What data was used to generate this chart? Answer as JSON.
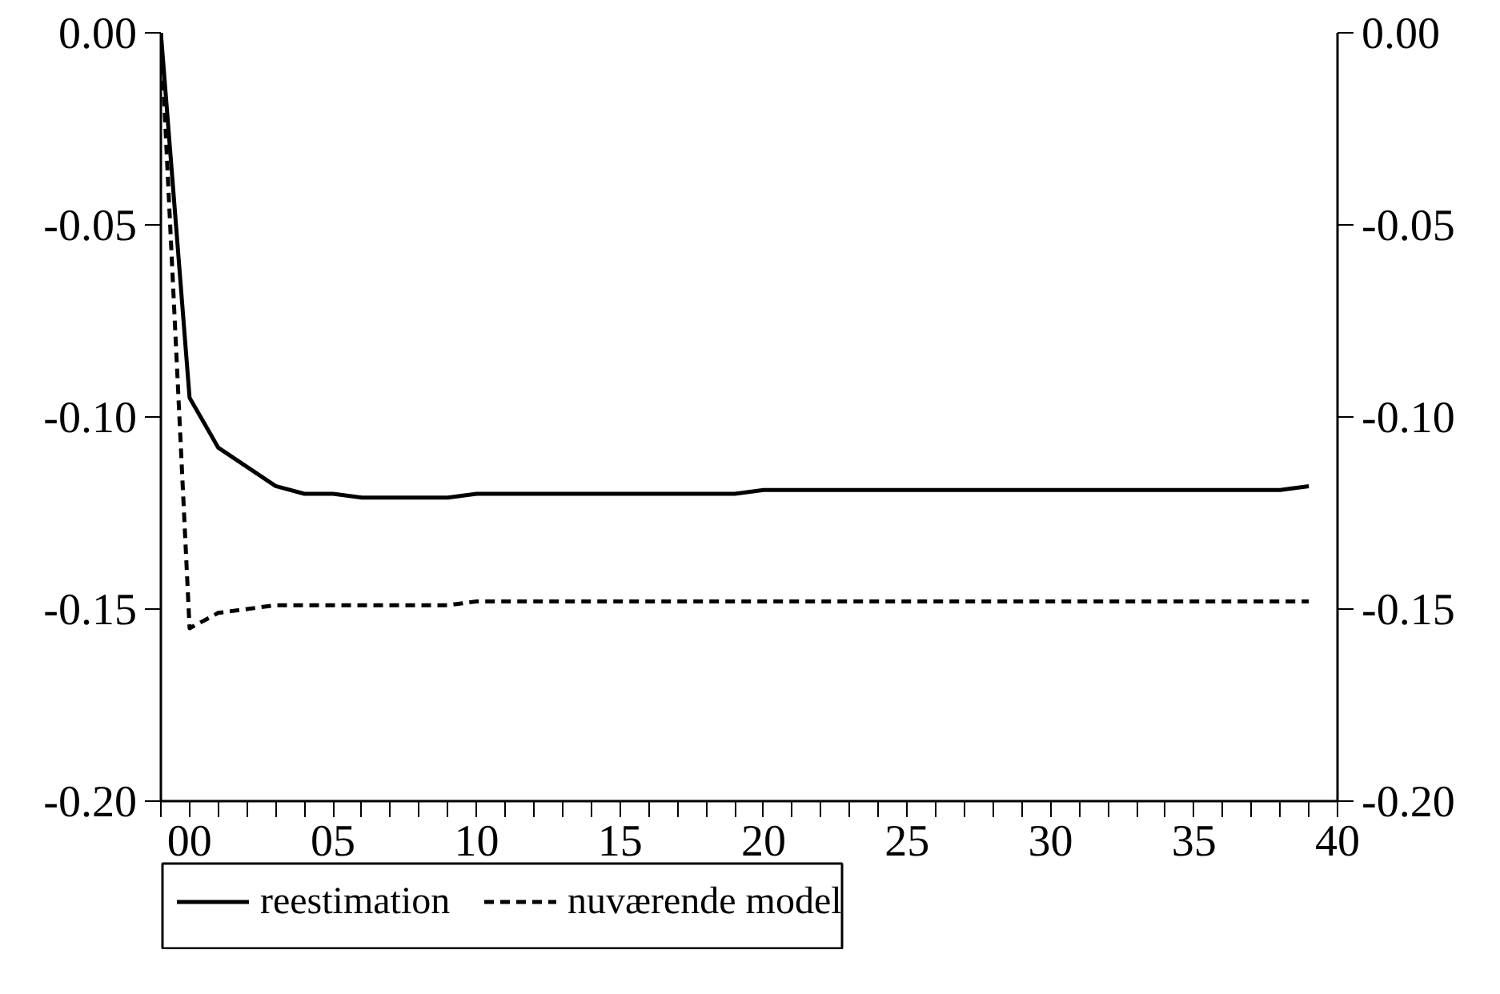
{
  "chart_data": {
    "type": "line",
    "x": [
      -1,
      0,
      1,
      2,
      3,
      4,
      5,
      6,
      7,
      8,
      9,
      10,
      11,
      12,
      13,
      14,
      15,
      16,
      17,
      18,
      19,
      20,
      21,
      22,
      23,
      24,
      25,
      26,
      27,
      28,
      29,
      30,
      31,
      32,
      33,
      34,
      35,
      36,
      37,
      38,
      39
    ],
    "series": [
      {
        "name": "reestimation",
        "color": "#000000",
        "line_style": "solid",
        "values": [
          0,
          -0.095,
          -0.108,
          -0.113,
          -0.118,
          -0.12,
          -0.12,
          -0.121,
          -0.121,
          -0.121,
          -0.121,
          -0.12,
          -0.12,
          -0.12,
          -0.12,
          -0.12,
          -0.12,
          -0.12,
          -0.12,
          -0.12,
          -0.12,
          -0.119,
          -0.119,
          -0.119,
          -0.119,
          -0.119,
          -0.119,
          -0.119,
          -0.119,
          -0.119,
          -0.119,
          -0.119,
          -0.119,
          -0.119,
          -0.119,
          -0.119,
          -0.119,
          -0.119,
          -0.119,
          -0.119,
          -0.118
        ]
      },
      {
        "name": "nuværende model",
        "color": "#000000",
        "line_style": "dashed",
        "values": [
          0,
          -0.155,
          -0.151,
          -0.15,
          -0.149,
          -0.149,
          -0.149,
          -0.149,
          -0.149,
          -0.149,
          -0.149,
          -0.148,
          -0.148,
          -0.148,
          -0.148,
          -0.148,
          -0.148,
          -0.148,
          -0.148,
          -0.148,
          -0.148,
          -0.148,
          -0.148,
          -0.148,
          -0.148,
          -0.148,
          -0.148,
          -0.148,
          -0.148,
          -0.148,
          -0.148,
          -0.148,
          -0.148,
          -0.148,
          -0.148,
          -0.148,
          -0.148,
          -0.148,
          -0.148,
          -0.148,
          -0.148
        ]
      }
    ],
    "xlim": [
      -1,
      40
    ],
    "xticks": [
      {
        "value": -1,
        "label": null
      },
      {
        "value": 0,
        "label": "00"
      },
      {
        "value": 1,
        "label": null
      },
      {
        "value": 2,
        "label": null
      },
      {
        "value": 3,
        "label": null
      },
      {
        "value": 4,
        "label": null
      },
      {
        "value": 5,
        "label": "05"
      },
      {
        "value": 6,
        "label": null
      },
      {
        "value": 7,
        "label": null
      },
      {
        "value": 8,
        "label": null
      },
      {
        "value": 9,
        "label": null
      },
      10,
      {
        "value": 11,
        "label": null
      },
      {
        "value": 12,
        "label": null
      },
      {
        "value": 13,
        "label": null
      },
      {
        "value": 14,
        "label": null
      },
      15,
      {
        "value": 16,
        "label": null
      },
      {
        "value": 17,
        "label": null
      },
      {
        "value": 18,
        "label": null
      },
      {
        "value": 19,
        "label": null
      },
      20,
      {
        "value": 21,
        "label": null
      },
      {
        "value": 22,
        "label": null
      },
      {
        "value": 23,
        "label": null
      },
      {
        "value": 24,
        "label": null
      },
      25,
      {
        "value": 26,
        "label": null
      },
      {
        "value": 27,
        "label": null
      },
      {
        "value": 28,
        "label": null
      },
      {
        "value": 29,
        "label": null
      },
      30,
      {
        "value": 31,
        "label": null
      },
      {
        "value": 32,
        "label": null
      },
      {
        "value": 33,
        "label": null
      },
      {
        "value": 34,
        "label": null
      },
      35,
      {
        "value": 36,
        "label": null
      },
      {
        "value": 37,
        "label": null
      },
      {
        "value": 38,
        "label": null
      },
      {
        "value": 39,
        "label": null
      },
      40
    ],
    "ylim": [
      -0.2,
      0
    ],
    "yticks": [
      {
        "value": 0,
        "label": "0.00"
      },
      {
        "value": -0.05,
        "label": "-0.05"
      },
      {
        "value": -0.1,
        "label": "-0.10"
      },
      {
        "value": -0.15,
        "label": "-0.15"
      },
      {
        "value": -0.2,
        "label": "-0.20"
      }
    ],
    "y2lim": [
      -0.2,
      0
    ],
    "y2ticks": [
      {
        "value": 0,
        "label": "0.00"
      },
      {
        "value": -0.05,
        "label": "-0.05"
      },
      {
        "value": -0.1,
        "label": "-0.10"
      },
      {
        "value": -0.15,
        "label": "-0.15"
      },
      {
        "value": -0.2,
        "label": "-0.20"
      }
    ],
    "grid": false,
    "legend": "bottom left",
    "marker": "none"
  }
}
